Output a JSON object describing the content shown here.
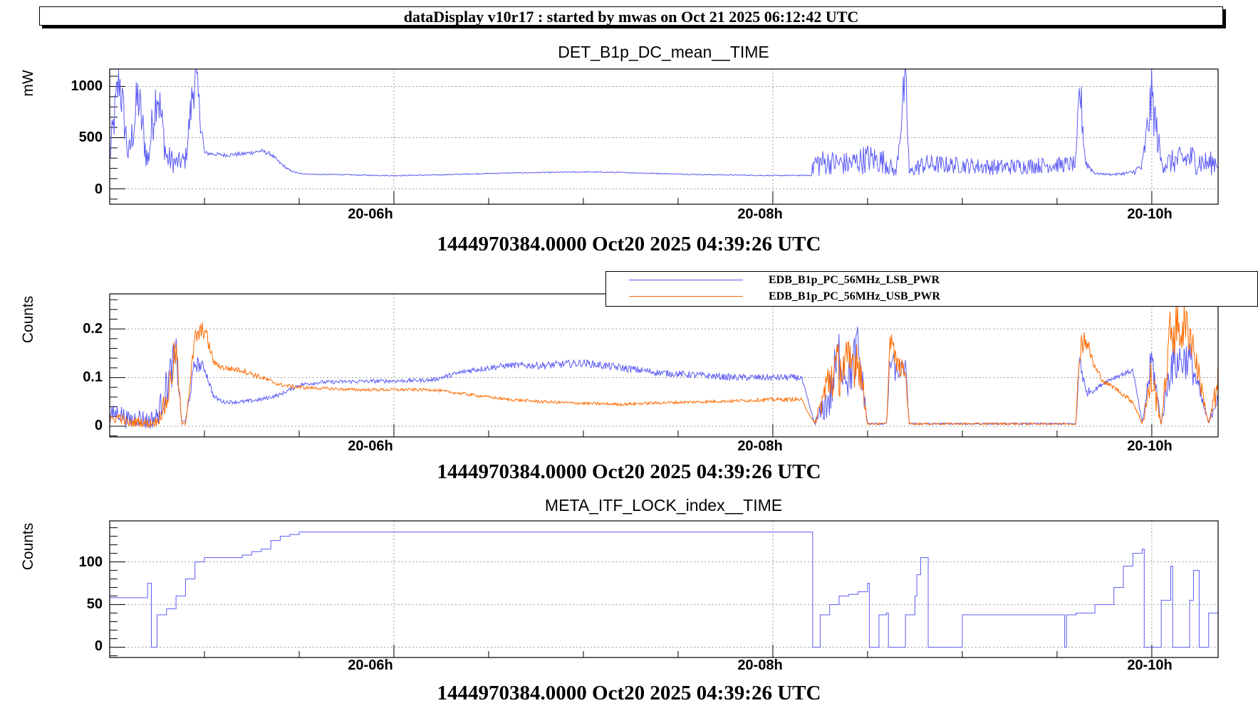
{
  "header": {
    "banner": "dataDisplay v10r17 : started by mwas on Oct 21 2025 06:12:42 UTC"
  },
  "colors": {
    "blue": "#5b5bf5",
    "orange": "#ff6a00",
    "grid": "#9a9a9a"
  },
  "x_axis": {
    "range_hours": [
      4.5,
      10.35
    ],
    "tick_labels": [
      "20-06h",
      "20-08h",
      "20-10h"
    ],
    "caption": "1444970384.0000 Oct20 2025 04:39:26 UTC"
  },
  "panels": [
    {
      "title": "DET_B1p_DC_mean__TIME",
      "ylabel": "mW",
      "ytick_labels": [
        "0",
        "500",
        "1000"
      ]
    },
    {
      "title": "",
      "ylabel": "Counts",
      "ytick_labels": [
        "0",
        "0.1",
        "0.2"
      ],
      "legend": [
        "EDB_B1p_PC_56MHz_LSB_PWR",
        "EDB_B1p_PC_56MHz_USB_PWR"
      ]
    },
    {
      "title": "META_ITF_LOCK_index__TIME",
      "ylabel": "Counts",
      "ytick_labels": [
        "0",
        "50",
        "100"
      ]
    }
  ],
  "chart_data": [
    {
      "type": "line",
      "title": "DET_B1p_DC_mean__TIME",
      "ylabel": "mW",
      "xlim_hours": [
        4.5,
        10.35
      ],
      "ylim": [
        -150,
        1170
      ],
      "grid": true,
      "series": [
        {
          "name": "DET_B1p_DC_mean__TIME",
          "x": [
            4.5,
            4.55,
            4.6,
            4.65,
            4.7,
            4.75,
            4.8,
            4.85,
            4.9,
            4.95,
            5.0,
            5.05,
            5.1,
            5.2,
            5.3,
            5.35,
            5.4,
            5.45,
            5.5,
            5.6,
            5.7,
            5.8,
            6.0,
            6.2,
            6.4,
            6.6,
            6.8,
            7.0,
            7.2,
            7.4,
            7.6,
            7.8,
            8.0,
            8.2,
            8.22,
            8.3,
            8.4,
            8.5,
            8.6,
            8.65,
            8.7,
            8.72,
            8.75,
            8.8,
            9.0,
            9.2,
            9.4,
            9.6,
            9.62,
            9.65,
            9.7,
            9.8,
            9.9,
            9.95,
            10.0,
            10.05,
            10.1,
            10.2,
            10.3,
            10.35
          ],
          "y": [
            300,
            1100,
            300,
            900,
            250,
            1000,
            300,
            250,
            280,
            1150,
            350,
            340,
            330,
            340,
            370,
            340,
            250,
            180,
            150,
            140,
            140,
            135,
            130,
            135,
            145,
            155,
            160,
            165,
            160,
            150,
            140,
            135,
            130,
            132,
            250,
            260,
            240,
            300,
            260,
            150,
            1100,
            150,
            200,
            240,
            230,
            210,
            230,
            240,
            1000,
            260,
            150,
            140,
            160,
            220,
            900,
            250,
            260,
            300,
            240,
            280
          ],
          "noise": [
            150,
            300,
            150,
            300,
            150,
            300,
            150,
            100,
            100,
            300,
            20,
            20,
            20,
            20,
            20,
            20,
            15,
            10,
            5,
            5,
            5,
            5,
            5,
            5,
            5,
            5,
            5,
            5,
            5,
            5,
            5,
            5,
            5,
            5,
            150,
            120,
            120,
            150,
            120,
            40,
            300,
            40,
            80,
            100,
            80,
            80,
            80,
            80,
            300,
            60,
            10,
            10,
            20,
            80,
            300,
            100,
            120,
            150,
            120,
            120
          ]
        }
      ]
    },
    {
      "type": "line",
      "ylabel": "Counts",
      "xlim_hours": [
        4.5,
        10.35
      ],
      "ylim": [
        -0.022,
        0.272
      ],
      "grid": true,
      "legend_placement": "top-right",
      "series": [
        {
          "name": "EDB_B1p_PC_56MHz_LSB_PWR",
          "x": [
            4.5,
            4.55,
            4.6,
            4.65,
            4.7,
            4.75,
            4.8,
            4.85,
            4.88,
            4.9,
            4.95,
            5.0,
            5.05,
            5.1,
            5.2,
            5.3,
            5.4,
            5.5,
            5.6,
            5.8,
            6.0,
            6.2,
            6.4,
            6.6,
            6.8,
            7.0,
            7.2,
            7.4,
            7.6,
            7.8,
            8.0,
            8.15,
            8.22,
            8.3,
            8.35,
            8.4,
            8.45,
            8.5,
            8.6,
            8.62,
            8.65,
            8.7,
            8.72,
            8.75,
            9.0,
            9.5,
            9.6,
            9.62,
            9.65,
            9.7,
            9.75,
            9.8,
            9.9,
            9.95,
            10.0,
            10.05,
            10.1,
            10.2,
            10.3,
            10.35
          ],
          "y": [
            0.02,
            0.03,
            0.01,
            0.02,
            0.01,
            0.02,
            0.08,
            0.15,
            0.01,
            0.01,
            0.13,
            0.12,
            0.06,
            0.05,
            0.05,
            0.055,
            0.065,
            0.085,
            0.09,
            0.092,
            0.093,
            0.095,
            0.115,
            0.125,
            0.125,
            0.13,
            0.12,
            0.11,
            0.105,
            0.1,
            0.1,
            0.1,
            0.005,
            0.06,
            0.15,
            0.1,
            0.16,
            0.005,
            0.005,
            0.14,
            0.11,
            0.12,
            0.005,
            0.005,
            0.005,
            0.005,
            0.005,
            0.15,
            0.07,
            0.075,
            0.09,
            0.1,
            0.115,
            0.005,
            0.14,
            0.005,
            0.13,
            0.14,
            0.005,
            0.07
          ],
          "noise": [
            0.02,
            0.02,
            0.02,
            0.02,
            0.02,
            0.02,
            0.04,
            0.04,
            0.002,
            0.002,
            0.02,
            0.01,
            0.005,
            0.004,
            0.004,
            0.004,
            0.004,
            0.004,
            0.004,
            0.004,
            0.004,
            0.004,
            0.006,
            0.006,
            0.008,
            0.008,
            0.008,
            0.007,
            0.007,
            0.007,
            0.007,
            0.007,
            0.002,
            0.05,
            0.06,
            0.05,
            0.06,
            0.002,
            0.002,
            0.04,
            0.02,
            0.02,
            0.002,
            0.002,
            0.002,
            0.002,
            0.002,
            0.04,
            0.01,
            0.005,
            0.005,
            0.005,
            0.005,
            0.002,
            0.04,
            0.002,
            0.05,
            0.04,
            0.002,
            0.03
          ]
        },
        {
          "name": "EDB_B1p_PC_56MHz_USB_PWR",
          "x": [
            4.5,
            4.55,
            4.6,
            4.65,
            4.7,
            4.75,
            4.8,
            4.85,
            4.88,
            4.9,
            4.95,
            5.0,
            5.05,
            5.1,
            5.2,
            5.3,
            5.4,
            5.5,
            5.6,
            5.8,
            6.0,
            6.2,
            6.4,
            6.6,
            6.8,
            7.0,
            7.2,
            7.4,
            7.6,
            7.8,
            8.0,
            8.15,
            8.22,
            8.3,
            8.35,
            8.4,
            8.45,
            8.5,
            8.6,
            8.62,
            8.65,
            8.7,
            8.72,
            8.75,
            9.0,
            9.5,
            9.6,
            9.62,
            9.65,
            9.7,
            9.75,
            9.8,
            9.9,
            9.95,
            10.0,
            10.05,
            10.1,
            10.2,
            10.3,
            10.35
          ],
          "y": [
            0.01,
            0.02,
            0.005,
            0.01,
            0.005,
            0.01,
            0.05,
            0.16,
            0.005,
            0.005,
            0.18,
            0.2,
            0.13,
            0.12,
            0.115,
            0.1,
            0.085,
            0.08,
            0.078,
            0.075,
            0.075,
            0.075,
            0.065,
            0.055,
            0.05,
            0.047,
            0.045,
            0.048,
            0.05,
            0.052,
            0.055,
            0.055,
            0.005,
            0.1,
            0.12,
            0.12,
            0.15,
            0.005,
            0.005,
            0.19,
            0.13,
            0.11,
            0.005,
            0.005,
            0.005,
            0.005,
            0.005,
            0.17,
            0.18,
            0.12,
            0.09,
            0.08,
            0.05,
            0.005,
            0.1,
            0.005,
            0.2,
            0.2,
            0.005,
            0.08
          ],
          "noise": [
            0.01,
            0.01,
            0.01,
            0.01,
            0.01,
            0.01,
            0.03,
            0.04,
            0.002,
            0.002,
            0.02,
            0.02,
            0.006,
            0.006,
            0.006,
            0.005,
            0.004,
            0.004,
            0.003,
            0.003,
            0.003,
            0.003,
            0.003,
            0.003,
            0.003,
            0.003,
            0.003,
            0.003,
            0.003,
            0.003,
            0.004,
            0.004,
            0.002,
            0.06,
            0.06,
            0.06,
            0.06,
            0.002,
            0.002,
            0.03,
            0.02,
            0.02,
            0.002,
            0.002,
            0.002,
            0.002,
            0.002,
            0.04,
            0.02,
            0.01,
            0.005,
            0.005,
            0.005,
            0.002,
            0.05,
            0.002,
            0.06,
            0.05,
            0.002,
            0.05
          ]
        }
      ]
    },
    {
      "type": "line",
      "title": "META_ITF_LOCK_index__TIME",
      "ylabel": "Counts",
      "xlim_hours": [
        4.5,
        10.35
      ],
      "ylim": [
        -12,
        148
      ],
      "grid": true,
      "step": true,
      "series": [
        {
          "name": "META_ITF_LOCK_index__TIME",
          "x": [
            4.5,
            4.7,
            4.7,
            4.72,
            4.72,
            4.75,
            4.75,
            4.8,
            4.85,
            4.9,
            4.95,
            5.0,
            5.1,
            5.2,
            5.25,
            5.3,
            5.35,
            5.4,
            5.45,
            5.5,
            5.6,
            6.0,
            7.0,
            8.2,
            8.21,
            8.22,
            8.25,
            8.3,
            8.35,
            8.4,
            8.45,
            8.5,
            8.51,
            8.55,
            8.56,
            8.6,
            8.61,
            8.65,
            8.7,
            8.75,
            8.76,
            8.78,
            8.8,
            8.82,
            8.85,
            9.0,
            9.5,
            9.54,
            9.55,
            9.6,
            9.7,
            9.8,
            9.85,
            9.9,
            9.95,
            9.96,
            10.0,
            10.05,
            10.1,
            10.11,
            10.15,
            10.2,
            10.22,
            10.25,
            10.3,
            10.35
          ],
          "y": [
            58,
            58,
            75,
            75,
            0,
            0,
            38,
            45,
            60,
            80,
            100,
            105,
            105,
            108,
            112,
            115,
            125,
            130,
            132,
            135,
            135,
            135,
            135,
            135,
            0,
            0,
            38,
            50,
            60,
            62,
            65,
            75,
            0,
            0,
            38,
            40,
            0,
            0,
            38,
            60,
            85,
            105,
            105,
            0,
            0,
            38,
            38,
            0,
            38,
            40,
            50,
            70,
            95,
            110,
            115,
            0,
            0,
            55,
            95,
            0,
            0,
            55,
            90,
            0,
            40,
            60
          ]
        }
      ]
    }
  ]
}
